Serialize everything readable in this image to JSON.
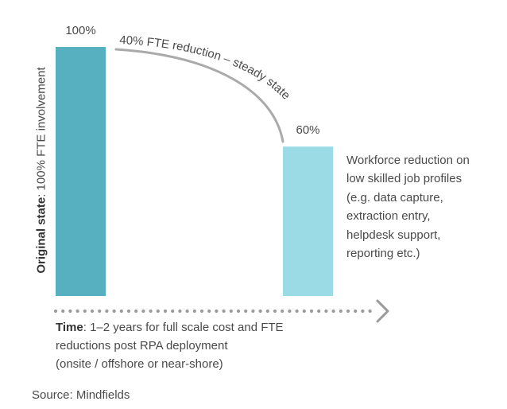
{
  "chart_data": {
    "type": "bar",
    "categories": [
      "Original state",
      "Steady state"
    ],
    "values": [
      100,
      60
    ],
    "value_labels": [
      "100%",
      "60%"
    ],
    "colors": [
      "#56b0c0",
      "#9bdbe6"
    ],
    "ylim": [
      0,
      100
    ],
    "ylabel": {
      "bold": "Original state",
      "rest": ": 100% FTE involvement"
    },
    "arc_label": "40% FTE reduction – steady state",
    "annotation_lines": [
      "Workforce reduction on",
      "low skilled job profiles",
      "(e.g. data capture,",
      "extraction entry,",
      "helpdesk support,",
      "reporting etc.)"
    ],
    "time_axis": {
      "bold": "Time",
      "lines": [
        ": 1–2 years for full scale cost and FTE",
        "reductions post RPA deployment",
        "(onsite / offshore or near-shore)"
      ]
    },
    "source": "Source: Mindfields",
    "accent_colors": {
      "dots": "#9a9a9a",
      "arc": "#aaaaaa",
      "text": "#4a4a4a"
    }
  }
}
